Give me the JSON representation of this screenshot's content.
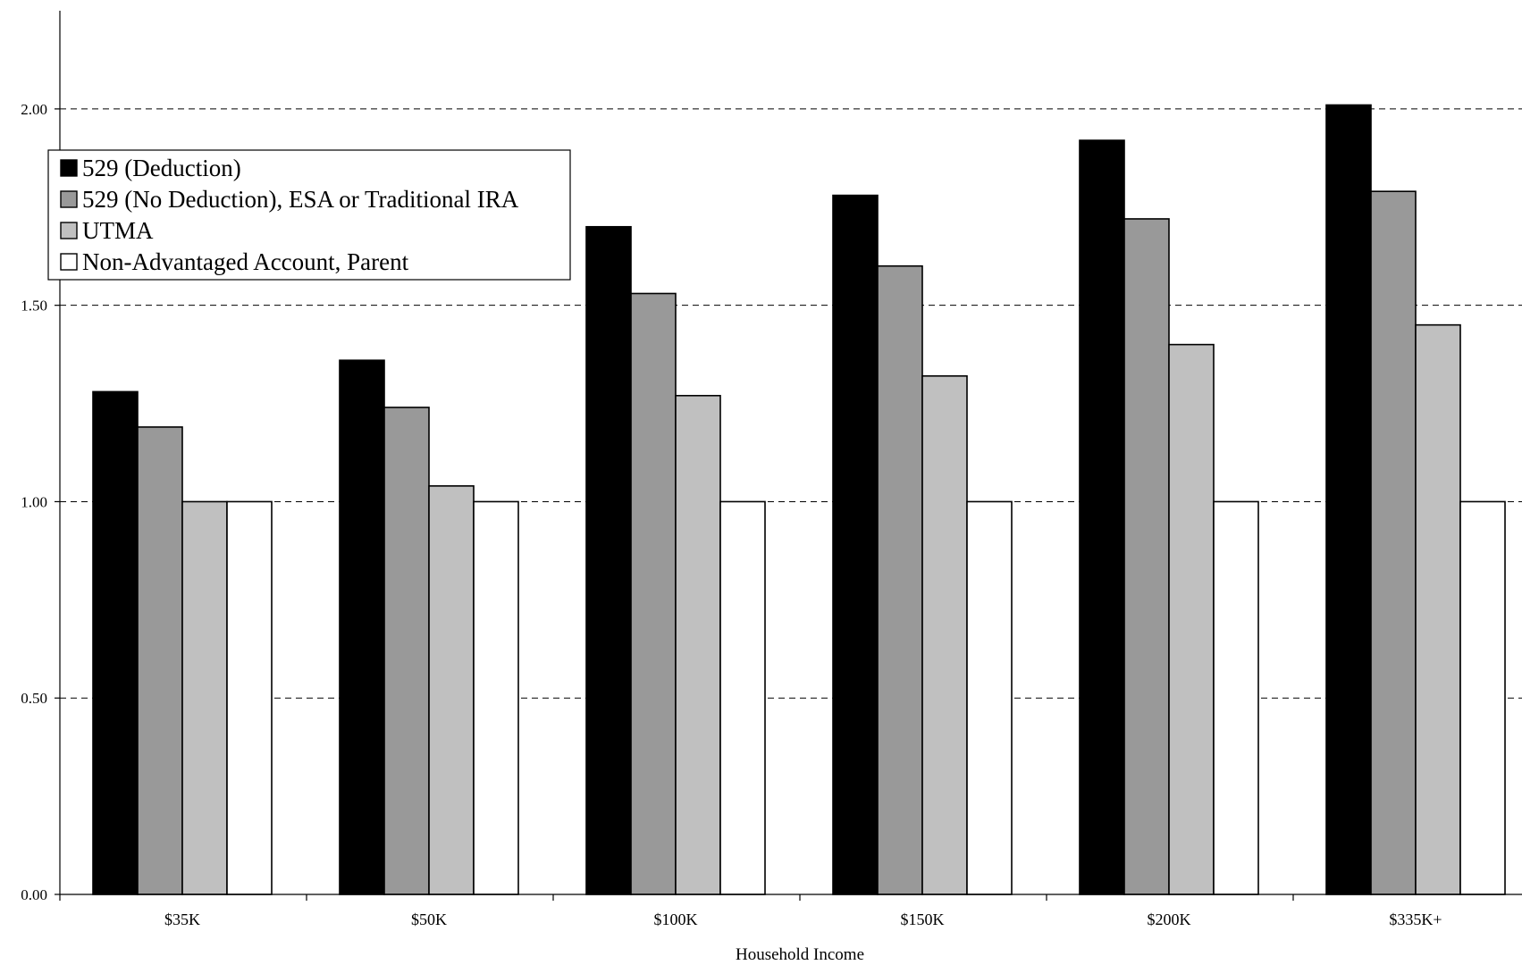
{
  "chart_data": {
    "type": "bar",
    "categories": [
      "$35K",
      "$50K",
      "$100K",
      "$150K",
      "$200K",
      "$335K+"
    ],
    "series": [
      {
        "name": "529 (Deduction)",
        "color": "#000000",
        "values": [
          1.28,
          1.36,
          1.7,
          1.78,
          1.92,
          2.01
        ]
      },
      {
        "name": "529 (No Deduction), ESA or Traditional IRA",
        "color": "#999999",
        "values": [
          1.19,
          1.24,
          1.53,
          1.6,
          1.72,
          1.79
        ]
      },
      {
        "name": "UTMA",
        "color": "#c0c0c0",
        "values": [
          1.0,
          1.04,
          1.27,
          1.32,
          1.4,
          1.45
        ]
      },
      {
        "name": "Non-Advantaged Account, Parent",
        "color": "#ffffff",
        "values": [
          1.0,
          1.0,
          1.0,
          1.0,
          1.0,
          1.0
        ]
      }
    ],
    "title": "",
    "xlabel": "Household Income",
    "ylabel": "",
    "ylim": [
      0,
      2.25
    ],
    "yticks": [
      0.0,
      0.5,
      1.0,
      1.5,
      2.0
    ],
    "ytick_labels": [
      "0.00",
      "0.50",
      "1.00",
      "1.50",
      "2.00"
    ],
    "grid": "horizontal-dashed",
    "legend_position": "top-left"
  }
}
